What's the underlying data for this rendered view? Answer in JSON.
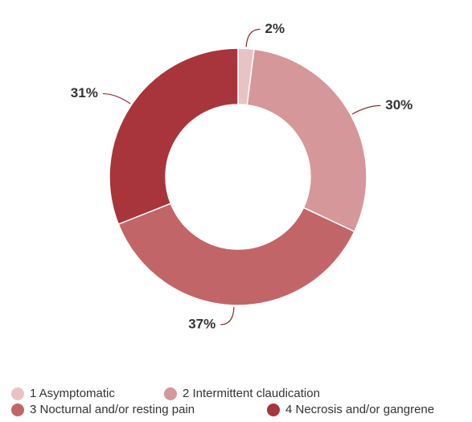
{
  "chart_data": {
    "type": "donut",
    "categories": [
      "1 Asymptomatic",
      "2 Intermittent claudication",
      "3 Nocturnal and/or resting pain",
      "4 Necrosis and/or gangrene"
    ],
    "values": [
      2,
      30,
      37,
      31
    ],
    "value_labels": [
      "2%",
      "30%",
      "37%",
      "31%"
    ],
    "colors": [
      "#e8c3c5",
      "#d5979a",
      "#c26568",
      "#a8353b"
    ],
    "legend": "bottom"
  }
}
